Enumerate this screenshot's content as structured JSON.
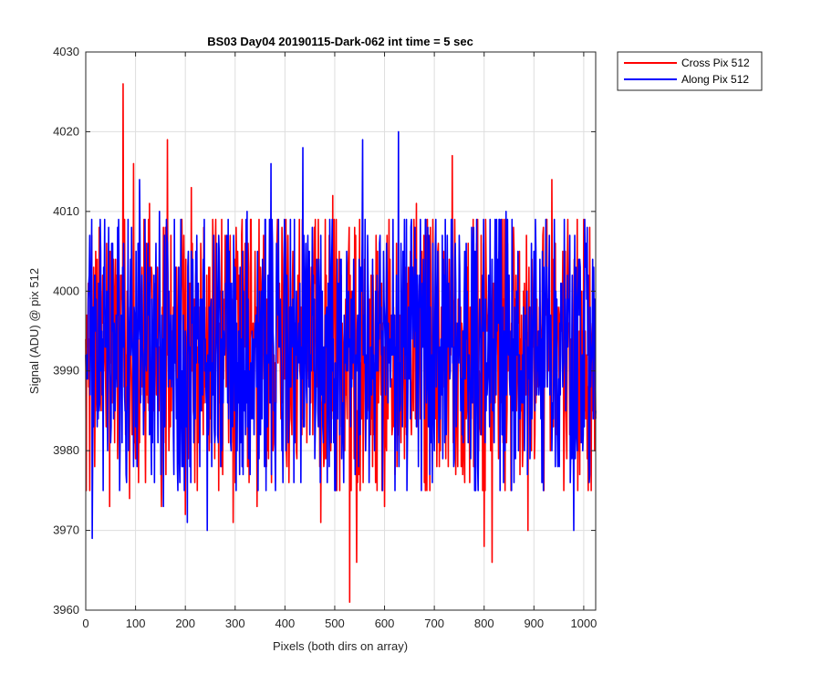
{
  "chart_data": {
    "type": "line",
    "title": "BS03 Day04 20190115-Dark-062 int time = 5 sec",
    "xlabel": "Pixels (both dirs on array)",
    "ylabel": "Signal (ADU) @ pix 512",
    "xlim": [
      0,
      1024
    ],
    "ylim": [
      3960,
      4030
    ],
    "xticks": [
      "0",
      "100",
      "200",
      "300",
      "400",
      "500",
      "600",
      "700",
      "800",
      "900",
      "1000"
    ],
    "yticks": [
      "3960",
      "3970",
      "3980",
      "3990",
      "4000",
      "4010",
      "4020",
      "4030"
    ],
    "grid": true,
    "legend_position": "outside-top-right",
    "series": [
      {
        "name": "Cross Pix 512",
        "color": "#ff0000",
        "summary": {
          "mean_approx": 3993,
          "min": 3961,
          "min_at_x": 530,
          "max": 4026,
          "max_at_x": 75
        },
        "x": [
          0,
          8,
          16,
          24,
          32,
          40,
          48,
          56,
          64,
          72,
          75,
          80,
          88,
          96,
          104,
          112,
          120,
          128,
          136,
          144,
          152,
          160,
          164,
          168,
          176,
          184,
          192,
          200,
          208,
          212,
          216,
          224,
          232,
          240,
          248,
          256,
          264,
          272,
          280,
          288,
          296,
          304,
          312,
          320,
          328,
          336,
          344,
          352,
          360,
          368,
          376,
          384,
          392,
          400,
          408,
          416,
          424,
          432,
          440,
          448,
          456,
          464,
          472,
          480,
          488,
          496,
          504,
          512,
          520,
          530,
          536,
          544,
          552,
          560,
          568,
          576,
          584,
          592,
          600,
          608,
          616,
          624,
          632,
          640,
          648,
          656,
          664,
          672,
          680,
          688,
          696,
          704,
          712,
          720,
          728,
          736,
          744,
          752,
          760,
          768,
          776,
          784,
          792,
          800,
          808,
          816,
          824,
          832,
          840,
          848,
          856,
          864,
          872,
          880,
          888,
          896,
          904,
          912,
          920,
          928,
          936,
          944,
          952,
          960,
          968,
          976,
          984,
          992,
          1000,
          1008,
          1016,
          1024
        ],
        "y": [
          3994,
          3975,
          4003,
          3984,
          3997,
          3988,
          3973,
          4004,
          3979,
          4002,
          4026,
          3982,
          3974,
          4016,
          3981,
          3999,
          3976,
          4011,
          3985,
          4003,
          3973,
          4008,
          4019,
          3984,
          3998,
          3981,
          4004,
          3972,
          3996,
          4013,
          3985,
          3975,
          4002,
          3988,
          3980,
          4005,
          3993,
          3978,
          4007,
          3989,
          3971,
          3999,
          3984,
          4006,
          3976,
          3996,
          3973,
          4001,
          3987,
          3994,
          3980,
          4006,
          3984,
          3999,
          3976,
          4005,
          3979,
          3998,
          4000,
          3989,
          3982,
          4002,
          3971,
          3993,
          3985,
          4012,
          3975,
          3996,
          3980,
          3961,
          3997,
          3966,
          3991,
          4004,
          3985,
          3978,
          4001,
          3990,
          3973,
          3996,
          3983,
          4006,
          3986,
          3979,
          4003,
          3989,
          4011,
          3984,
          3976,
          3999,
          3987,
          4000,
          3980,
          3994,
          3978,
          4017,
          3985,
          3992,
          3979,
          4006,
          3986,
          3996,
          3983,
          3968,
          3997,
          3966,
          3992,
          4005,
          3981,
          3990,
          3985,
          4002,
          3977,
          3994,
          3970,
          4004,
          3986,
          3997,
          3975,
          3999,
          4014,
          3983,
          3992,
          3975,
          4009,
          3982,
          3999,
          3977,
          4009,
          3988,
          3994,
          3984
        ]
      },
      {
        "name": "Along Pix 512",
        "color": "#0000ff",
        "summary": {
          "mean_approx": 3993,
          "min": 3969,
          "min_at_x": 13,
          "max": 4020,
          "max_at_x": 628
        },
        "x": [
          0,
          6,
          13,
          20,
          28,
          36,
          44,
          52,
          60,
          68,
          76,
          84,
          92,
          100,
          108,
          116,
          124,
          132,
          140,
          148,
          156,
          164,
          172,
          180,
          188,
          196,
          204,
          212,
          220,
          228,
          236,
          244,
          252,
          260,
          268,
          276,
          284,
          292,
          300,
          308,
          316,
          324,
          332,
          340,
          348,
          356,
          364,
          372,
          380,
          388,
          396,
          404,
          412,
          420,
          428,
          436,
          444,
          452,
          460,
          468,
          476,
          484,
          492,
          500,
          508,
          516,
          524,
          532,
          540,
          548,
          556,
          564,
          572,
          580,
          588,
          596,
          604,
          612,
          620,
          628,
          636,
          644,
          652,
          660,
          668,
          676,
          684,
          692,
          700,
          708,
          716,
          724,
          732,
          740,
          748,
          756,
          764,
          772,
          780,
          788,
          796,
          804,
          812,
          820,
          828,
          836,
          844,
          852,
          860,
          868,
          876,
          884,
          892,
          900,
          908,
          916,
          924,
          932,
          940,
          948,
          956,
          964,
          972,
          980,
          988,
          996,
          1004,
          1012,
          1020,
          1024
        ],
        "y": [
          3992,
          4001,
          3969,
          3995,
          3986,
          4003,
          3980,
          4006,
          3990,
          3975,
          4006,
          3987,
          4008,
          3983,
          4014,
          3982,
          4002,
          3977,
          3999,
          4010,
          3973,
          4006,
          3988,
          4003,
          3979,
          3997,
          3971,
          4005,
          3984,
          3992,
          4004,
          3970,
          3999,
          3982,
          4005,
          3986,
          3994,
          3980,
          4003,
          3989,
          3977,
          4010,
          3984,
          3996,
          3979,
          4002,
          3985,
          4016,
          3981,
          3993,
          3976,
          4002,
          3988,
          3981,
          3996,
          4018,
          3986,
          3992,
          3979,
          4004,
          3983,
          3998,
          3990,
          3975,
          4001,
          3986,
          4005,
          3983,
          3995,
          3978,
          4019,
          3987,
          3993,
          3980,
          3996,
          3975,
          4006,
          3988,
          3997,
          4020,
          3983,
          4009,
          3984,
          3993,
          3978,
          4001,
          3986,
          3998,
          3980,
          3992,
          4007,
          3982,
          3990,
          3979,
          3995,
          3982,
          4006,
          3987,
          3993,
          3975,
          4000,
          3985,
          4009,
          3981,
          3996,
          3982,
          4010,
          3987,
          3976,
          4005,
          3986,
          3995,
          3979,
          4005,
          3990,
          3976,
          4009,
          3987,
          3993,
          3978,
          4001,
          3985,
          4007,
          3970,
          3999,
          3985,
          4004,
          3977,
          4003,
          3985
        ]
      }
    ]
  }
}
